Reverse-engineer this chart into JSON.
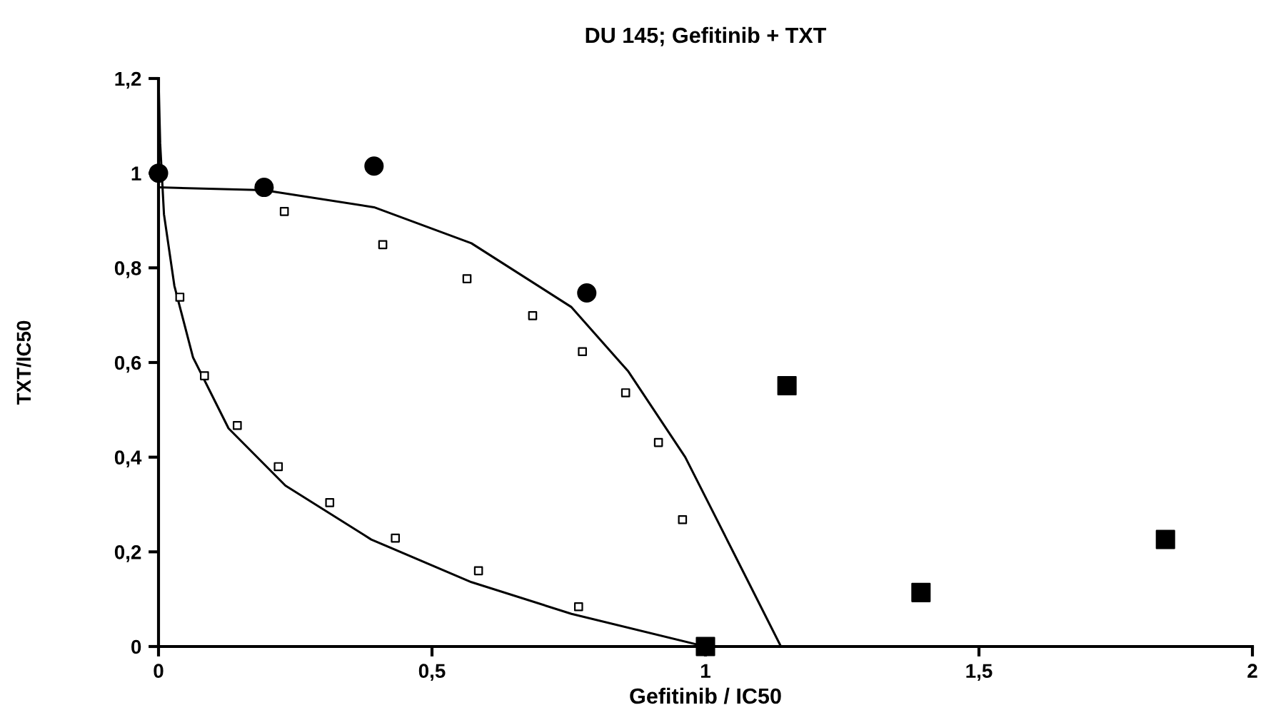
{
  "chart_data": {
    "type": "scatter",
    "title": "DU 145; Gefitinib + TXT",
    "xlabel": "Gefitinib / IC50",
    "ylabel": "TXT/IC50",
    "xlim": [
      0,
      2
    ],
    "ylim": [
      0,
      1.2
    ],
    "xticks": [
      0,
      {
        "value": 0.5,
        "label": "0,5"
      },
      1,
      {
        "value": 1.5,
        "label": "1,5"
      },
      2
    ],
    "yticks": [
      0,
      {
        "value": 0.2,
        "label": "0,2"
      },
      {
        "value": 0.4,
        "label": "0,4"
      },
      {
        "value": 0.6,
        "label": "0,6"
      },
      {
        "value": 0.8,
        "label": "0,8"
      },
      1,
      {
        "value": 1.2,
        "label": "1,2"
      }
    ],
    "grid": false,
    "series": [
      {
        "type": "line",
        "color": "#000000",
        "marker": "none",
        "x": [
          0,
          0.193,
          0.394,
          0.572,
          0.755,
          0.859,
          0.963,
          1.055,
          1.138
        ],
        "values": [
          0.97,
          0.964,
          0.928,
          0.852,
          0.717,
          0.581,
          0.4,
          0.19,
          0
        ]
      },
      {
        "type": "line",
        "color": "#000000",
        "marker": "none",
        "x": [
          0,
          0.003,
          0.01,
          0.029,
          0.063,
          0.128,
          0.232,
          0.389,
          0.572,
          0.755,
          1.0
        ],
        "values": [
          1.2,
          1.063,
          0.913,
          0.762,
          0.611,
          0.461,
          0.34,
          0.226,
          0.136,
          0.069,
          0
        ]
      },
      {
        "color": "#ffffff",
        "marker": "square",
        "x": [
          0.23,
          0.41,
          0.564,
          0.684,
          0.775,
          0.854,
          0.914,
          0.958
        ],
        "values": [
          0.919,
          0.849,
          0.777,
          0.699,
          0.623,
          0.536,
          0.431,
          0.268
        ]
      },
      {
        "color": "#ffffff",
        "marker": "square",
        "x": [
          0.039,
          0.084,
          0.144,
          0.219,
          0.313,
          0.433,
          0.585,
          0.768
        ],
        "values": [
          0.738,
          0.572,
          0.467,
          0.38,
          0.304,
          0.229,
          0.16,
          0.084
        ]
      },
      {
        "color": "#000000",
        "marker": "circle",
        "x": [
          0,
          0.193,
          0.394,
          0.783
        ],
        "values": [
          1.0,
          0.97,
          1.015,
          0.747
        ]
      },
      {
        "color": "#000000",
        "marker": "square",
        "x": [
          1.0,
          1.149,
          1.394,
          1.841
        ],
        "values": [
          0.0,
          0.551,
          0.114,
          0.226
        ]
      }
    ]
  }
}
